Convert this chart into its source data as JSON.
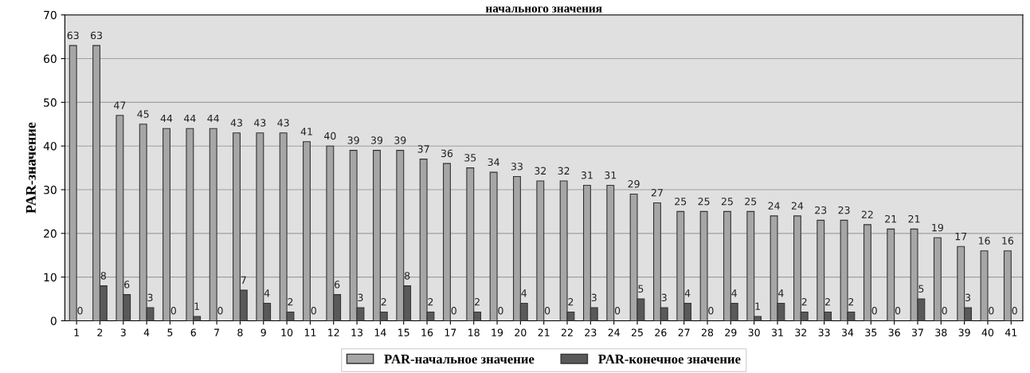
{
  "chart_data": {
    "type": "bar",
    "title": "начального значения",
    "ylabel": "PAR-значение",
    "categories": [
      "1",
      "2",
      "3",
      "4",
      "5",
      "6",
      "7",
      "8",
      "9",
      "10",
      "11",
      "12",
      "13",
      "14",
      "15",
      "16",
      "17",
      "18",
      "19",
      "20",
      "21",
      "22",
      "23",
      "24",
      "25",
      "26",
      "27",
      "28",
      "29",
      "30",
      "31",
      "32",
      "33",
      "34",
      "35",
      "36",
      "37",
      "38",
      "39",
      "40",
      "41"
    ],
    "series": [
      {
        "name": "PAR-начальное значение",
        "color": "#a6a6a6",
        "values": [
          63,
          63,
          47,
          45,
          44,
          44,
          44,
          43,
          43,
          43,
          41,
          40,
          39,
          39,
          39,
          37,
          36,
          35,
          34,
          33,
          32,
          32,
          31,
          31,
          29,
          27,
          25,
          25,
          25,
          25,
          24,
          24,
          23,
          23,
          22,
          21,
          21,
          19,
          17,
          16,
          16
        ]
      },
      {
        "name": "PAR-конечное значение",
        "color": "#595959",
        "values": [
          0,
          8,
          6,
          3,
          0,
          1,
          0,
          7,
          4,
          2,
          0,
          6,
          3,
          2,
          8,
          2,
          0,
          2,
          0,
          4,
          0,
          2,
          3,
          0,
          5,
          3,
          4,
          0,
          4,
          1,
          4,
          2,
          2,
          2,
          0,
          0,
          5,
          0,
          3,
          0,
          0
        ]
      }
    ],
    "ylim": [
      0,
      70
    ],
    "yticks": [
      0,
      10,
      20,
      30,
      40,
      50,
      60,
      70
    ],
    "grid": "y",
    "legend": "bottom",
    "data_labels": true
  }
}
